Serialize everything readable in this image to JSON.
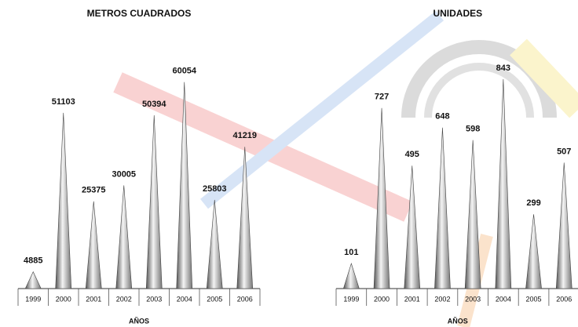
{
  "chart_data": [
    {
      "type": "bar",
      "title": "METROS CUADRADOS",
      "x_label": "AÑOS",
      "categories": [
        "1999",
        "2000",
        "2001",
        "2002",
        "2003",
        "2004",
        "2005",
        "2006"
      ],
      "values": [
        4885,
        51103,
        25375,
        30005,
        50394,
        60054,
        25803,
        41219
      ],
      "ylim": [
        0,
        65000
      ],
      "color": "#9a9a9a"
    },
    {
      "type": "bar",
      "title": "UNIDADES",
      "x_label": "AÑOS",
      "categories": [
        "1999",
        "2000",
        "2001",
        "2002",
        "2003",
        "2004",
        "2005",
        "2006"
      ],
      "values": [
        101,
        727,
        495,
        648,
        598,
        843,
        299,
        507
      ],
      "ylim": [
        0,
        900
      ],
      "color": "#9a9a9a"
    }
  ]
}
